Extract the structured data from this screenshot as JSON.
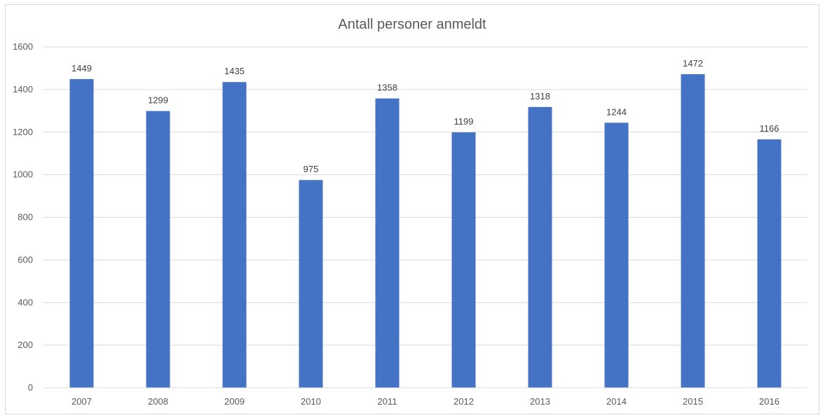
{
  "chart_data": {
    "type": "bar",
    "title": "Antall personer anmeldt",
    "xlabel": "",
    "ylabel": "",
    "categories": [
      "2007",
      "2008",
      "2009",
      "2010",
      "2011",
      "2012",
      "2013",
      "2014",
      "2015",
      "2016"
    ],
    "values": [
      1449,
      1299,
      1435,
      975,
      1358,
      1199,
      1318,
      1244,
      1472,
      1166
    ],
    "data_labels": [
      "1449",
      "1299",
      "1435",
      "975",
      "1358",
      "1199",
      "1318",
      "1244",
      "1472",
      "1166"
    ],
    "ylim": [
      0,
      1600
    ],
    "yticks": [
      "0",
      "200",
      "400",
      "600",
      "800",
      "1000",
      "1200",
      "1400",
      "1600"
    ],
    "grid": true,
    "legend": "none",
    "bar_color": "#4472c4"
  }
}
